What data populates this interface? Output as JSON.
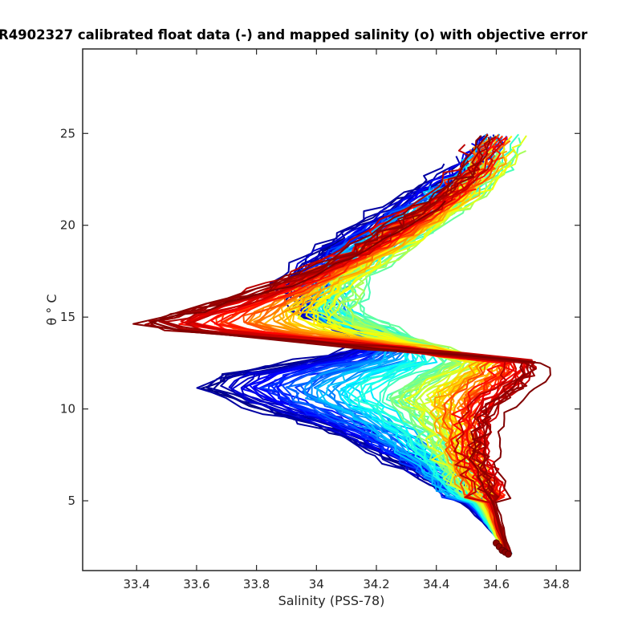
{
  "chart_data": {
    "type": "line",
    "title": "R4902327 calibrated float data (-) and mapped salinity (o) with objective error",
    "xlabel": "Salinity (PSS-78)",
    "ylabel": "θ ° C",
    "xlim": [
      33.22,
      34.88
    ],
    "ylim": [
      1.2,
      29.6
    ],
    "xticks": [
      "33.4",
      "33.6",
      "33.8",
      "34",
      "34.2",
      "34.4",
      "34.6",
      "34.8"
    ],
    "yticks": [
      "5",
      "10",
      "15",
      "20",
      "25"
    ],
    "grid": false,
    "legend": "none",
    "colormap": "jet (profile index)",
    "profile_count": 120,
    "mapped_salinity_points": {
      "x": [
        34.6,
        34.61,
        34.62,
        34.63,
        34.64
      ],
      "y": [
        2.7,
        2.5,
        2.3,
        2.2,
        2.1
      ]
    },
    "profile_envelope": {
      "early_profiles": {
        "color": "#0000d0",
        "points": [
          [
            34.64,
            2.1
          ],
          [
            34.6,
            3.2
          ],
          [
            34.52,
            4.5
          ],
          [
            34.4,
            6
          ],
          [
            34.22,
            7.5
          ],
          [
            34.05,
            8.8
          ],
          [
            33.85,
            9.8
          ],
          [
            33.7,
            10.6
          ],
          [
            33.62,
            11.2
          ],
          [
            33.7,
            11.9
          ],
          [
            33.95,
            12.6
          ],
          [
            34.15,
            13.3
          ],
          [
            34.1,
            14.2
          ],
          [
            33.95,
            15.2
          ],
          [
            33.9,
            17
          ],
          [
            34.0,
            18.5
          ],
          [
            34.15,
            20
          ],
          [
            34.3,
            21.5
          ],
          [
            34.45,
            23
          ],
          [
            34.55,
            25
          ]
        ]
      },
      "middle_profiles": {
        "color": "#ffff00",
        "points": [
          [
            34.64,
            2.1
          ],
          [
            34.6,
            3.2
          ],
          [
            34.56,
            4.5
          ],
          [
            34.5,
            6
          ],
          [
            34.44,
            7.5
          ],
          [
            34.4,
            8.8
          ],
          [
            34.35,
            9.8
          ],
          [
            34.3,
            10.6
          ],
          [
            34.35,
            11.2
          ],
          [
            34.42,
            11.9
          ],
          [
            34.5,
            12.6
          ],
          [
            34.4,
            13.3
          ],
          [
            34.25,
            14.2
          ],
          [
            34.1,
            15.2
          ],
          [
            34.12,
            17
          ],
          [
            34.25,
            18.5
          ],
          [
            34.38,
            20
          ],
          [
            34.5,
            21.5
          ],
          [
            34.6,
            23
          ],
          [
            34.7,
            26
          ]
        ]
      },
      "late_profiles": {
        "color": "#800000",
        "points": [
          [
            34.64,
            2.1
          ],
          [
            34.62,
            3.2
          ],
          [
            34.6,
            4.5
          ],
          [
            34.57,
            6
          ],
          [
            34.54,
            7.5
          ],
          [
            34.55,
            8.8
          ],
          [
            34.58,
            9.8
          ],
          [
            34.63,
            10.6
          ],
          [
            34.68,
            11.2
          ],
          [
            34.72,
            11.9
          ],
          [
            34.7,
            12.6
          ],
          [
            34.2,
            13.3
          ],
          [
            33.55,
            14.2
          ],
          [
            33.38,
            14.6
          ],
          [
            33.6,
            15.5
          ],
          [
            33.9,
            17
          ],
          [
            34.1,
            18.5
          ],
          [
            34.25,
            20
          ],
          [
            34.4,
            21.5
          ],
          [
            34.5,
            23
          ],
          [
            34.6,
            26
          ]
        ]
      }
    }
  }
}
